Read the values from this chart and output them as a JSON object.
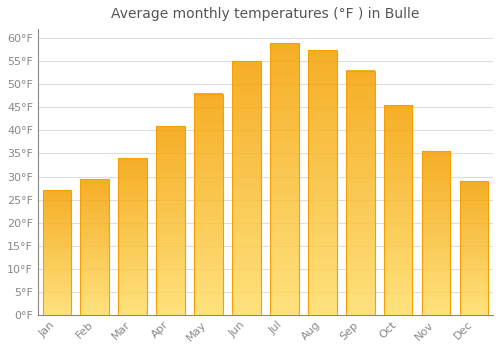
{
  "title": "Average monthly temperatures (°F ) in Bulle",
  "months": [
    "Jan",
    "Feb",
    "Mar",
    "Apr",
    "May",
    "Jun",
    "Jul",
    "Aug",
    "Sep",
    "Oct",
    "Nov",
    "Dec"
  ],
  "values": [
    27,
    29.5,
    34,
    41,
    48,
    55,
    59,
    57.5,
    53,
    45.5,
    35.5,
    29
  ],
  "bar_color_light": "#FFCC44",
  "bar_color_dark": "#F5A000",
  "background_color": "#FFFFFF",
  "plot_bg_color": "#FFFFFF",
  "grid_color": "#DDDDDD",
  "ylim": [
    0,
    62
  ],
  "title_fontsize": 10,
  "tick_fontsize": 8,
  "tick_color": "#888888",
  "title_color": "#555555",
  "spine_color": "#888888",
  "bar_width": 0.75
}
